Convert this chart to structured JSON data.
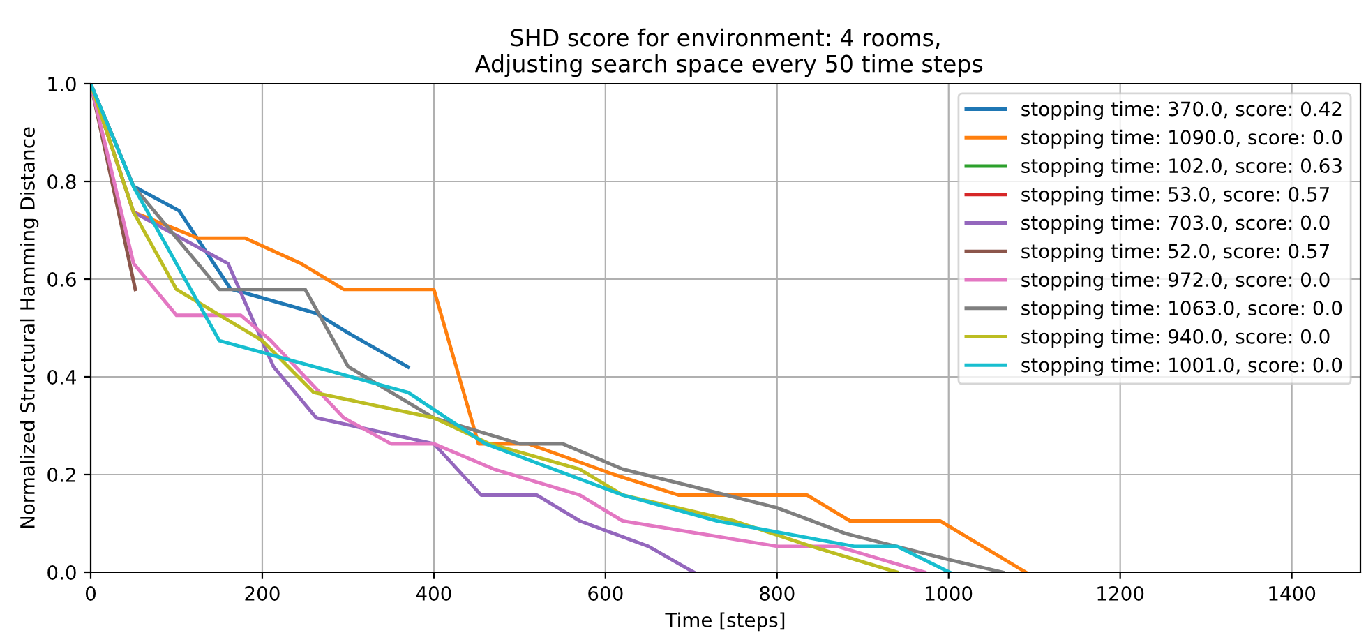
{
  "chart_data": {
    "type": "line",
    "title": "SHD score for environment: 4 rooms,\n Adjusting search space every 50 time steps",
    "xlabel": "Time [steps]",
    "ylabel": "Normalized Structural Hamming Distance",
    "xlim": [
      0,
      1480
    ],
    "ylim": [
      0,
      1.0
    ],
    "xticks": [
      0,
      200,
      400,
      600,
      800,
      1000,
      1200,
      1400
    ],
    "yticks": [
      {
        "value": 0,
        "label": "0.0"
      },
      0.2,
      0.4,
      0.6,
      0.8,
      {
        "value": 1,
        "label": "1.0"
      }
    ],
    "grid": true,
    "legend": "top right",
    "marker": "none",
    "line_style": "solid",
    "series": [
      {
        "name": "stopping time: 370.0, score: 0.42",
        "color": "#1f77b4",
        "x": [
          0,
          50,
          103,
          163,
          263,
          300,
          370
        ],
        "values": [
          1.0,
          0.79,
          0.74,
          0.58,
          0.53,
          0.49,
          0.42
        ]
      },
      {
        "name": "stopping time: 1090.0, score: 0.0",
        "color": "#ff7f0e",
        "x": [
          0,
          50,
          125,
          180,
          245,
          295,
          400,
          452,
          510,
          610,
          685,
          835,
          885,
          990,
          1090
        ],
        "values": [
          1.0,
          0.737,
          0.684,
          0.684,
          0.632,
          0.579,
          0.579,
          0.263,
          0.263,
          0.2,
          0.158,
          0.158,
          0.105,
          0.105,
          0.0
        ]
      },
      {
        "name": "stopping time: 102.0, score: 0.63",
        "color": "#2ca02c"
      },
      {
        "name": "stopping time: 53.0, score: 0.57",
        "color": "#d62728"
      },
      {
        "name": "stopping time: 703.0, score: 0.0",
        "color": "#9467bd",
        "x": [
          0,
          50,
          160,
          213,
          263,
          400,
          455,
          520,
          570,
          650,
          703
        ],
        "values": [
          1.0,
          0.737,
          0.632,
          0.421,
          0.316,
          0.263,
          0.158,
          0.158,
          0.105,
          0.053,
          0.0
        ]
      },
      {
        "name": "stopping time: 52.0, score: 0.57",
        "color": "#8c564b",
        "x": [
          0,
          52
        ],
        "values": [
          1.0,
          0.579
        ]
      },
      {
        "name": "stopping time: 972.0, score: 0.0",
        "color": "#e377c2",
        "x": [
          0,
          50,
          100,
          175,
          210,
          295,
          350,
          400,
          470,
          570,
          620,
          800,
          870,
          972
        ],
        "values": [
          1.0,
          0.632,
          0.526,
          0.526,
          0.474,
          0.316,
          0.263,
          0.263,
          0.211,
          0.158,
          0.105,
          0.053,
          0.053,
          0.0
        ]
      },
      {
        "name": "stopping time: 1063.0, score: 0.0",
        "color": "#7f7f7f",
        "x": [
          0,
          50,
          150,
          250,
          300,
          400,
          500,
          550,
          620,
          800,
          880,
          1000,
          1063
        ],
        "values": [
          1.0,
          0.79,
          0.579,
          0.579,
          0.421,
          0.316,
          0.263,
          0.263,
          0.211,
          0.132,
          0.079,
          0.026,
          0.0
        ]
      },
      {
        "name": "stopping time: 940.0, score: 0.0",
        "color": "#bcbd22",
        "x": [
          0,
          50,
          100,
          200,
          260,
          400,
          465,
          570,
          620,
          750,
          840,
          940
        ],
        "values": [
          1.0,
          0.737,
          0.579,
          0.474,
          0.368,
          0.316,
          0.263,
          0.211,
          0.158,
          0.105,
          0.053,
          0.0
        ]
      },
      {
        "name": "stopping time: 1001.0, score: 0.0",
        "color": "#17becf",
        "x": [
          0,
          50,
          150,
          370,
          460,
          620,
          730,
          890,
          940,
          1001
        ],
        "values": [
          1.0,
          0.789,
          0.474,
          0.368,
          0.263,
          0.158,
          0.105,
          0.053,
          0.053,
          0.0
        ]
      }
    ]
  }
}
